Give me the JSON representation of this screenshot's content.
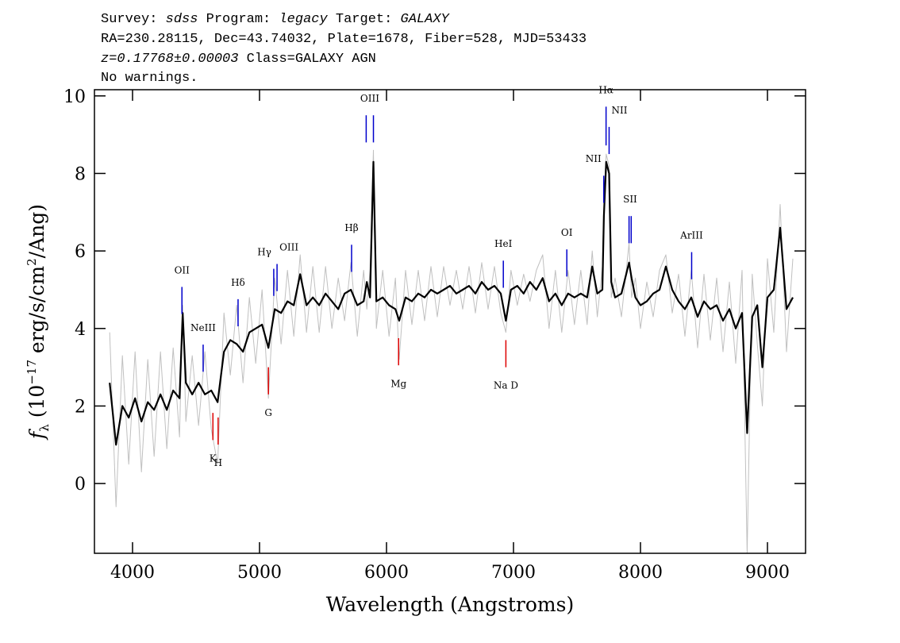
{
  "chart_data": {
    "type": "line",
    "header": [
      [
        "Survey: ",
        "sdss",
        " Program: ",
        "legacy",
        " Target: ",
        "GALAXY"
      ],
      [
        "RA=230.28115, Dec=43.74032, Plate=1678, Fiber=528, MJD=53433"
      ],
      [
        "z=0.17768±0.00003",
        " Class=GALAXY AGN"
      ],
      [
        "No warnings."
      ]
    ],
    "xlabel": "Wavelength (Angstroms)",
    "ylabel": [
      "f",
      "λ",
      " (10",
      "−17",
      " erg/s/cm",
      "2",
      "/Ang)"
    ],
    "xlim": [
      3700,
      9300
    ],
    "ylim": [
      -1.8,
      10.16
    ],
    "xticks": [
      4000,
      5000,
      6000,
      7000,
      8000,
      9000
    ],
    "yticks": [
      0,
      2,
      4,
      6,
      8,
      10
    ],
    "x": [
      3820,
      3870,
      3920,
      3970,
      4020,
      4070,
      4120,
      4170,
      4220,
      4270,
      4320,
      4370,
      4395,
      4420,
      4470,
      4520,
      4570,
      4620,
      4670,
      4720,
      4770,
      4820,
      4870,
      4920,
      4970,
      5020,
      5070,
      5120,
      5170,
      5220,
      5270,
      5320,
      5370,
      5420,
      5470,
      5520,
      5570,
      5620,
      5670,
      5720,
      5770,
      5820,
      5845,
      5870,
      5897,
      5920,
      5970,
      6020,
      6070,
      6100,
      6150,
      6200,
      6250,
      6300,
      6350,
      6400,
      6450,
      6500,
      6550,
      6600,
      6650,
      6700,
      6750,
      6800,
      6850,
      6900,
      6940,
      6980,
      7030,
      7080,
      7130,
      7180,
      7230,
      7280,
      7330,
      7380,
      7430,
      7480,
      7530,
      7580,
      7620,
      7660,
      7700,
      7712,
      7730,
      7753,
      7770,
      7800,
      7850,
      7910,
      7930,
      7960,
      8000,
      8050,
      8100,
      8150,
      8200,
      8250,
      8300,
      8350,
      8400,
      8450,
      8500,
      8550,
      8600,
      8650,
      8700,
      8750,
      8800,
      8840,
      8880,
      8920,
      8960,
      9000,
      9050,
      9100,
      9150,
      9200
    ],
    "series": [
      {
        "color": "#c0c0c0",
        "width": 1,
        "values": [
          3.9,
          -0.6,
          3.3,
          0.5,
          3.4,
          0.3,
          3.2,
          0.7,
          3.4,
          0.9,
          3.5,
          1.2,
          4.6,
          1.6,
          3.3,
          1.5,
          3.4,
          1.4,
          0.5,
          4.4,
          2.8,
          4.6,
          2.6,
          4.8,
          3.1,
          5.0,
          2.2,
          5.3,
          3.6,
          5.5,
          3.8,
          5.9,
          3.9,
          5.6,
          3.9,
          5.6,
          4.0,
          5.3,
          4.2,
          5.7,
          3.8,
          5.5,
          4.5,
          5.5,
          8.6,
          4.0,
          5.5,
          3.8,
          5.3,
          3.2,
          5.5,
          4.1,
          5.5,
          4.2,
          5.6,
          4.3,
          5.6,
          4.6,
          5.5,
          4.5,
          5.6,
          4.4,
          5.7,
          4.5,
          5.6,
          4.4,
          3.9,
          5.5,
          4.6,
          5.4,
          4.7,
          5.5,
          5.9,
          4.0,
          5.5,
          3.9,
          5.5,
          4.1,
          5.5,
          4.1,
          6.0,
          4.3,
          5.6,
          7.2,
          8.5,
          8.2,
          4.8,
          5.3,
          4.3,
          6.2,
          4.8,
          5.3,
          4.0,
          5.2,
          4.3,
          5.5,
          5.9,
          4.4,
          5.4,
          3.8,
          5.5,
          3.5,
          5.4,
          3.7,
          5.3,
          3.4,
          5.2,
          3.1,
          5.5,
          -1.8,
          5.4,
          3.6,
          2.0,
          5.8,
          3.9,
          7.2,
          3.4,
          5.8
        ]
      },
      {
        "color": "#000000",
        "width": 2.2,
        "values": [
          2.6,
          1.0,
          2.0,
          1.7,
          2.2,
          1.6,
          2.1,
          1.9,
          2.3,
          1.9,
          2.4,
          2.2,
          4.4,
          2.6,
          2.3,
          2.6,
          2.3,
          2.4,
          2.1,
          3.4,
          3.7,
          3.6,
          3.4,
          3.9,
          4.0,
          4.1,
          3.5,
          4.5,
          4.4,
          4.7,
          4.6,
          5.4,
          4.6,
          4.8,
          4.6,
          4.9,
          4.7,
          4.5,
          4.9,
          5.0,
          4.6,
          4.7,
          5.2,
          4.8,
          8.3,
          4.7,
          4.8,
          4.6,
          4.5,
          4.2,
          4.8,
          4.7,
          4.9,
          4.8,
          5.0,
          4.9,
          5.0,
          5.1,
          4.9,
          5.0,
          5.1,
          4.9,
          5.2,
          5.0,
          5.1,
          4.9,
          4.2,
          5.0,
          5.1,
          4.9,
          5.2,
          5.0,
          5.3,
          4.7,
          4.9,
          4.6,
          4.9,
          4.8,
          4.9,
          4.8,
          5.6,
          4.9,
          5.0,
          6.9,
          8.3,
          8.0,
          5.2,
          4.8,
          4.9,
          5.7,
          5.3,
          4.8,
          4.6,
          4.7,
          4.9,
          5.0,
          5.6,
          5.0,
          4.7,
          4.5,
          4.8,
          4.3,
          4.7,
          4.5,
          4.6,
          4.2,
          4.5,
          4.0,
          4.4,
          1.3,
          4.3,
          4.6,
          3.0,
          4.8,
          5.0,
          6.6,
          4.5,
          4.8
        ]
      }
    ],
    "emission_color": "#0000cc",
    "absorption_color": "#dd0000",
    "emission_lines": [
      {
        "label": "OII",
        "waves": [
          4389
        ]
      },
      {
        "label": "NeIII",
        "waves": [
          4556
        ]
      },
      {
        "label": "Hδ",
        "waves": [
          4831
        ]
      },
      {
        "label": "Hγ",
        "waves": [
          5112
        ]
      },
      {
        "label": "OIII",
        "waves": [
          5138
        ]
      },
      {
        "label": "Hβ",
        "waves": [
          5725
        ]
      },
      {
        "label": "OIII",
        "waves": [
          5840,
          5897
        ]
      },
      {
        "label": "HeI",
        "waves": [
          6920
        ]
      },
      {
        "label": "OI",
        "waves": [
          7420
        ]
      },
      {
        "label": "NII",
        "waves": [
          7711
        ]
      },
      {
        "label": "Hα",
        "waves": [
          7729
        ]
      },
      {
        "label": "NII",
        "waves": [
          7753
        ]
      },
      {
        "label": "SII",
        "waves": [
          7910,
          7927
        ]
      },
      {
        "label": "ArIII",
        "waves": [
          8403
        ]
      }
    ],
    "absorption_lines": [
      {
        "label": "K",
        "waves": [
          4633
        ]
      },
      {
        "label": "H",
        "waves": [
          4674
        ]
      },
      {
        "label": "G",
        "waves": [
          5070
        ]
      },
      {
        "label": "Mg",
        "waves": [
          6095
        ]
      },
      {
        "label": "Na D",
        "waves": [
          6940
        ]
      }
    ]
  }
}
